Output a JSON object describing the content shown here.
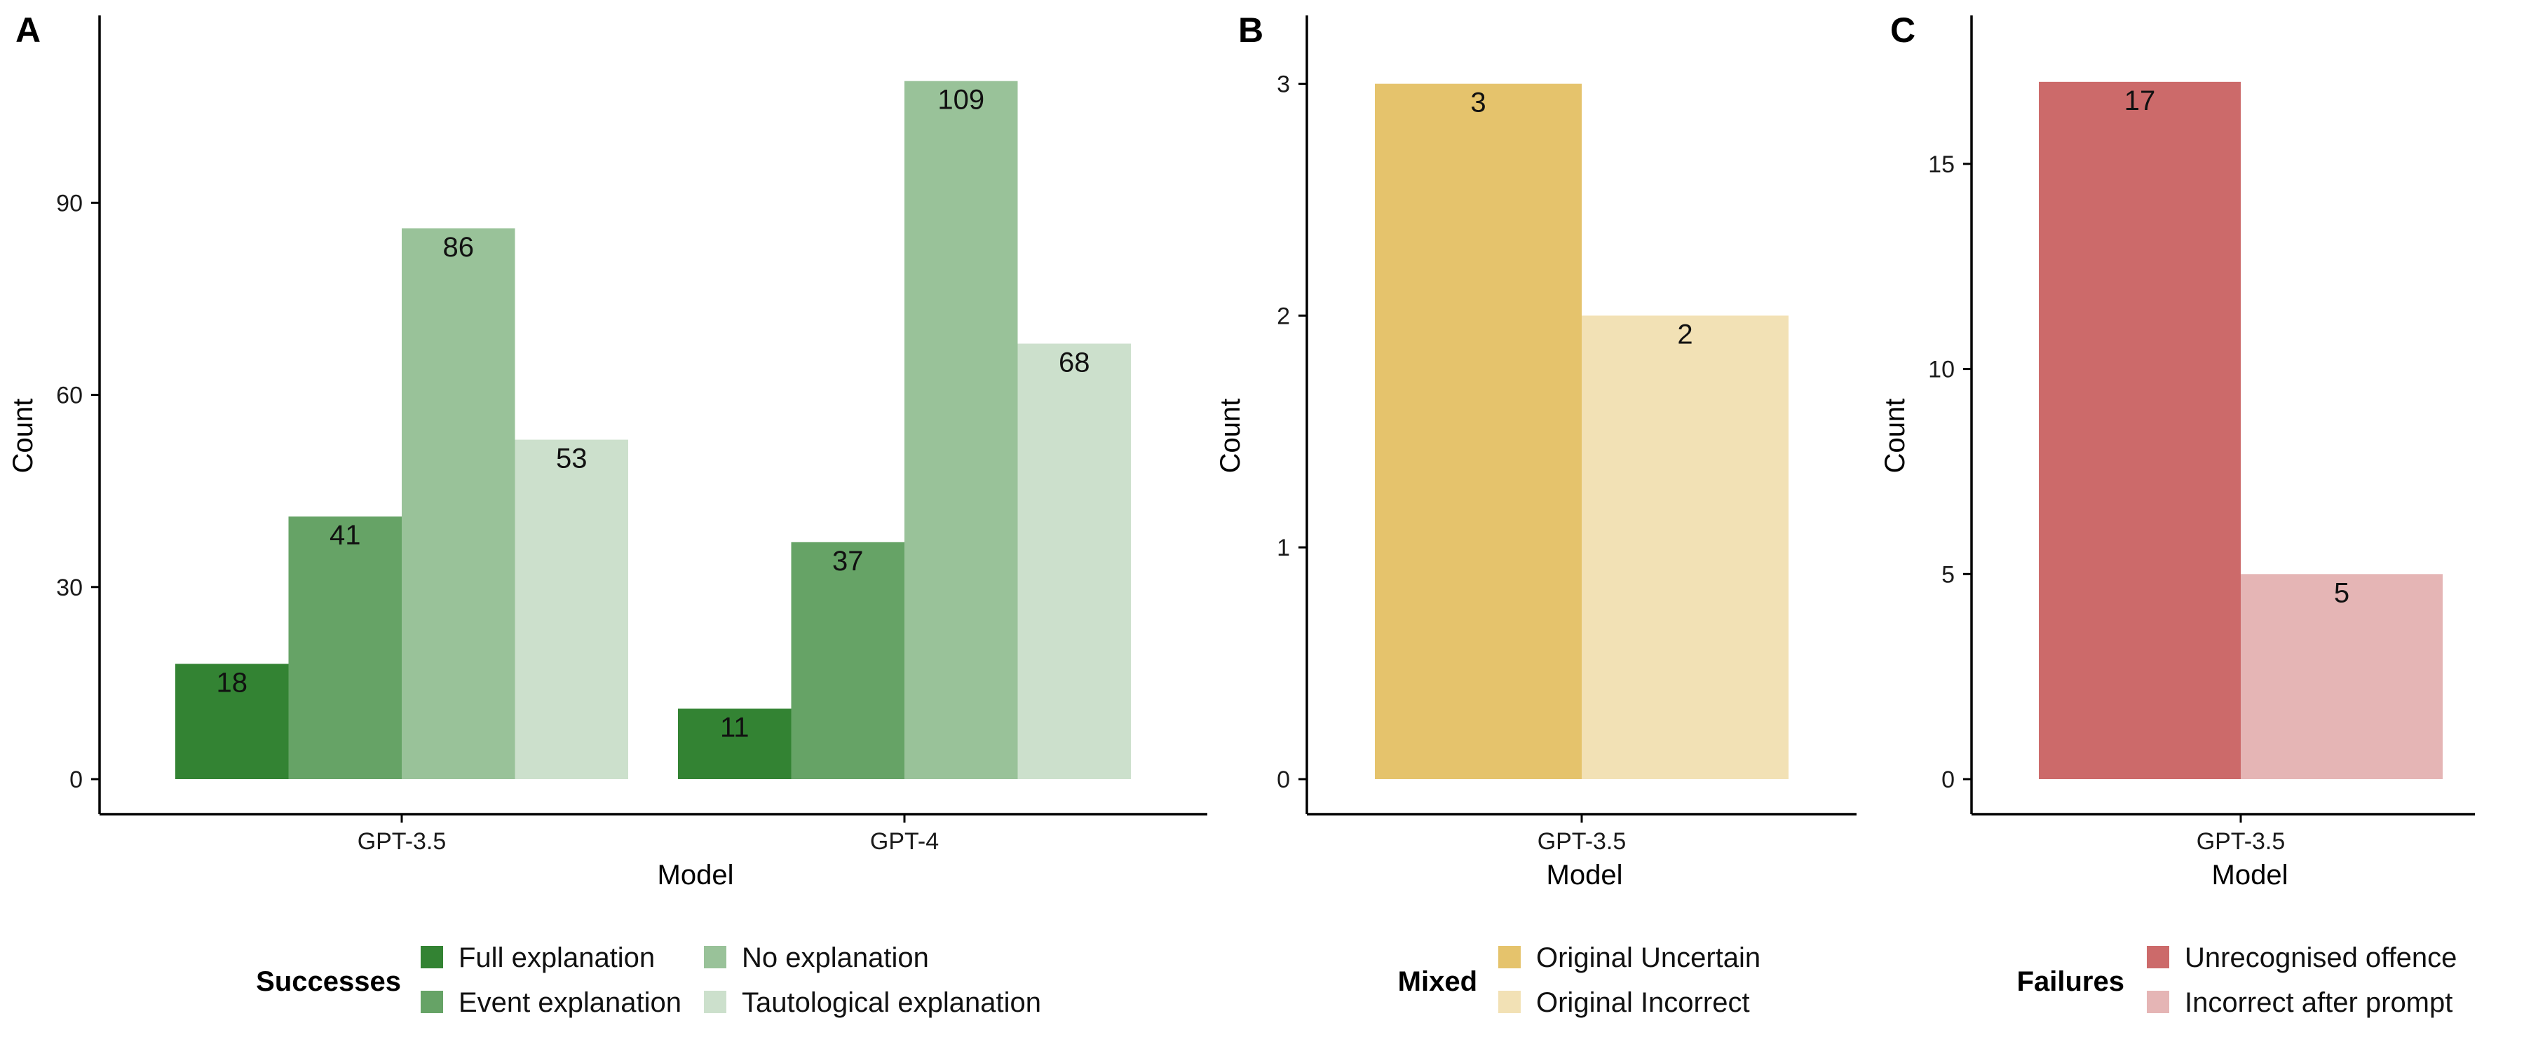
{
  "chart_data": [
    {
      "panel": "A",
      "type": "bar",
      "xlabel": "Model",
      "ylabel": "Count",
      "ylim": [
        0,
        114
      ],
      "yticks": [
        0,
        30,
        60,
        90
      ],
      "categories": [
        "GPT-3.5",
        "GPT-4"
      ],
      "legend_title": "Successes",
      "legend_position": "bottom",
      "series": [
        {
          "name": "Full explanation",
          "color": "#338333",
          "values": [
            18,
            11
          ]
        },
        {
          "name": "Event explanation",
          "color": "#66a366",
          "values": [
            41,
            37
          ]
        },
        {
          "name": "No explanation",
          "color": "#99c299",
          "values": [
            86,
            109
          ]
        },
        {
          "name": "Tautological explanation",
          "color": "#cce0cc",
          "values": [
            53,
            68
          ]
        }
      ],
      "grid": false
    },
    {
      "panel": "B",
      "type": "bar",
      "xlabel": "Model",
      "ylabel": "Count",
      "ylim": [
        0,
        3.15
      ],
      "yticks": [
        0,
        1,
        2,
        3
      ],
      "categories": [
        "GPT-3.5"
      ],
      "legend_title": "Mixed",
      "legend_position": "bottom",
      "series": [
        {
          "name": "Original Uncertain",
          "color": "#e5c36c",
          "values": [
            3
          ]
        },
        {
          "name": "Original Incorrect",
          "color": "#f2e1b5",
          "values": [
            2
          ]
        }
      ],
      "grid": false
    },
    {
      "panel": "C",
      "type": "bar",
      "xlabel": "Model",
      "ylabel": "Count",
      "ylim": [
        0,
        17.8
      ],
      "yticks": [
        0,
        5,
        10,
        15
      ],
      "categories": [
        "GPT-3.5"
      ],
      "legend_title": "Failures",
      "legend_position": "bottom",
      "series": [
        {
          "name": "Unrecognised offence",
          "color": "#cc6a6a",
          "values": [
            17
          ]
        },
        {
          "name": "Incorrect after prompt",
          "color": "#e5b5b5",
          "values": [
            5
          ]
        }
      ],
      "grid": false
    }
  ]
}
